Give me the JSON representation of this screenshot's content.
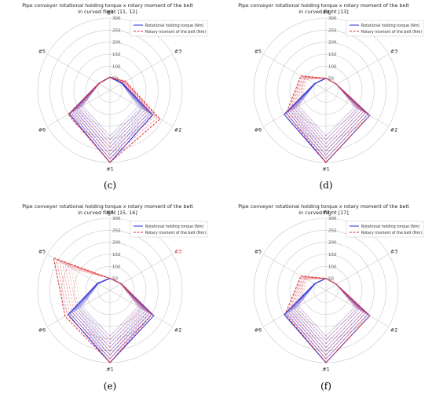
{
  "chart_data": [
    {
      "type": "radar",
      "panel_label": "(c)",
      "title": "Pipe conveyor rotational holding torque x rotary moment of the belt",
      "subtitle": "in curved flight [11, 12]",
      "r_ticks": [
        "50",
        "100",
        "150",
        "200",
        "250",
        "300"
      ],
      "rlim": [
        0,
        300
      ],
      "axes": [
        "#1",
        "#2",
        "#3",
        "#4",
        "#5",
        "#6"
      ],
      "highlight_axis": "",
      "legend": [
        "Rotational holding torque (Nm)",
        "Rotary moment of the belt (Nm)"
      ],
      "legend_position": "top-right",
      "series": [
        {
          "values": [
            300,
            205,
            60,
            55,
            55,
            195
          ],
          "color": "blue"
        },
        {
          "values": [
            300,
            240,
            75,
            55,
            55,
            200
          ],
          "color": "red"
        }
      ]
    },
    {
      "type": "radar",
      "panel_label": "(d)",
      "title": "Pipe conveyor rotational holding torque x rotary moment of the belt",
      "subtitle": "in curved flight [13]",
      "r_ticks": [
        "50",
        "100",
        "150",
        "200",
        "250",
        "300"
      ],
      "rlim": [
        0,
        300
      ],
      "axes": [
        "#1",
        "#2",
        "#3",
        "#4",
        "#5",
        "#6"
      ],
      "highlight_axis": "",
      "legend": [
        "Rotational holding torque (Nm)",
        "Rotary moment of the belt (Nm)"
      ],
      "legend_position": "top-right",
      "series": [
        {
          "values": [
            300,
            210,
            50,
            50,
            55,
            200
          ],
          "color": "blue"
        },
        {
          "values": [
            300,
            210,
            50,
            50,
            120,
            190
          ],
          "color": "red"
        }
      ]
    },
    {
      "type": "radar",
      "panel_label": "(e)",
      "title": "Pipe conveyor rotational holding torque x rotary moment of the belt",
      "subtitle": "in curved flight [15, 16]",
      "r_ticks": [
        "50",
        "100",
        "150",
        "200",
        "250",
        "300"
      ],
      "rlim": [
        0,
        300
      ],
      "axes": [
        "#1",
        "#2",
        "#3",
        "#4",
        "#5",
        "#6"
      ],
      "highlight_axis": "#3",
      "legend": [
        "Rotational holding torque (Nm)",
        "Rotary moment of the belt (Nm)"
      ],
      "legend_position": "top-right",
      "series": [
        {
          "values": [
            300,
            210,
            55,
            50,
            60,
            200
          ],
          "color": "blue"
        },
        {
          "values": [
            300,
            200,
            55,
            50,
            270,
            215
          ],
          "color": "red"
        }
      ]
    },
    {
      "type": "radar",
      "panel_label": "(f)",
      "title": "Pipe conveyor rotational holding torque x rotary moment of the belt",
      "subtitle": "in curved flight [17]",
      "r_ticks": [
        "50",
        "100",
        "150",
        "200",
        "250",
        "300"
      ],
      "rlim": [
        0,
        300
      ],
      "axes": [
        "#1",
        "#2",
        "#3",
        "#4",
        "#5",
        "#6"
      ],
      "highlight_axis": "",
      "legend": [
        "Rotational holding torque (Nm)",
        "Rotary moment of the belt (Nm)"
      ],
      "legend_position": "top-right",
      "series": [
        {
          "values": [
            300,
            210,
            50,
            50,
            55,
            200
          ],
          "color": "blue"
        },
        {
          "values": [
            300,
            210,
            50,
            50,
            120,
            195
          ],
          "color": "red"
        }
      ]
    }
  ],
  "colors": {
    "torque_line": "#2b2bd6",
    "belt_line": "#e0343f",
    "grid": "#c8c8c8",
    "highlight_axis_label": "#d62728"
  }
}
